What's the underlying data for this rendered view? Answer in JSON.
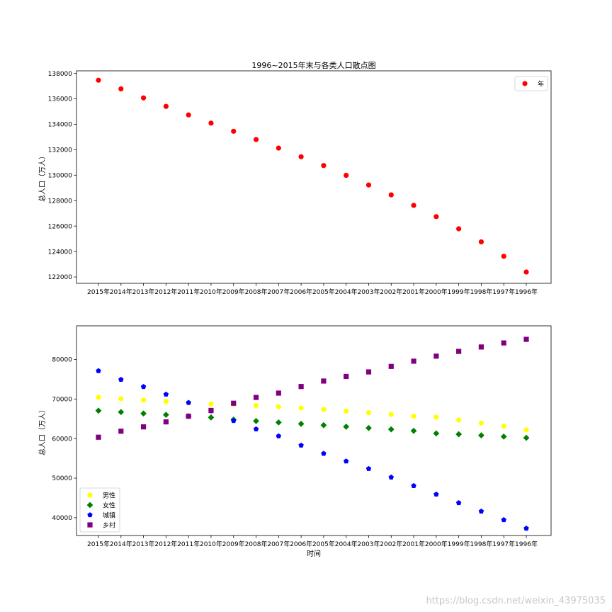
{
  "chart_data": [
    {
      "type": "scatter",
      "title": "1996~2015年末与各类人口散点图",
      "ylabel": "总人口（万人）",
      "xlabel": "",
      "ylim": [
        121500,
        138200
      ],
      "yticks": [
        122000,
        124000,
        126000,
        128000,
        130000,
        132000,
        134000,
        136000,
        138000
      ],
      "grid": false,
      "legend": "top-right",
      "categories": [
        "2015年",
        "2014年",
        "2013年",
        "2012年",
        "2011年",
        "2010年",
        "2009年",
        "2008年",
        "2007年",
        "2006年",
        "2005年",
        "2004年",
        "2003年",
        "2002年",
        "2001年",
        "2000年",
        "1999年",
        "1998年",
        "1997年",
        "1996年"
      ],
      "series": [
        {
          "name": "年",
          "color": "#ff0000",
          "marker": "circle",
          "values": [
            137462,
            136782,
            136072,
            135404,
            134735,
            134091,
            133450,
            132802,
            132129,
            131448,
            130756,
            129988,
            129227,
            128453,
            127627,
            126743,
            125786,
            124761,
            123626,
            122389
          ]
        }
      ]
    },
    {
      "type": "scatter",
      "title": "",
      "ylabel": "总人口（万人）",
      "xlabel": "时间",
      "ylim": [
        35500,
        88500
      ],
      "yticks": [
        40000,
        50000,
        60000,
        70000,
        80000
      ],
      "grid": false,
      "legend": "bottom-left",
      "categories": [
        "2015年",
        "2014年",
        "2013年",
        "2012年",
        "2011年",
        "2010年",
        "2009年",
        "2008年",
        "2007年",
        "2006年",
        "2005年",
        "2004年",
        "2003年",
        "2002年",
        "2001年",
        "2000年",
        "1999年",
        "1998年",
        "1997年",
        "1996年"
      ],
      "series": [
        {
          "name": "男性",
          "color": "#ffff00",
          "marker": "circle",
          "values": [
            70414,
            70079,
            69728,
            69395,
            69068,
            68748,
            68647,
            68357,
            68048,
            67728,
            67375,
            66976,
            66556,
            66115,
            65672,
            65437,
            64692,
            63940,
            63131,
            62200
          ]
        },
        {
          "name": "女性",
          "color": "#008000",
          "marker": "diamond",
          "values": [
            67048,
            66703,
            66344,
            66009,
            65667,
            65343,
            64803,
            64445,
            64081,
            63720,
            63381,
            63012,
            62671,
            62338,
            61955,
            61306,
            61094,
            60821,
            60495,
            60189
          ]
        },
        {
          "name": "城镇",
          "color": "#0000ff",
          "marker": "pentagon",
          "values": [
            77116,
            74916,
            73111,
            71182,
            69079,
            66978,
            64512,
            62403,
            60633,
            58288,
            56212,
            54283,
            52376,
            50212,
            48064,
            45906,
            43748,
            41608,
            39449,
            37304
          ]
        },
        {
          "name": "乡村",
          "color": "#800080",
          "marker": "square",
          "values": [
            60346,
            61866,
            62961,
            64222,
            65656,
            67113,
            68938,
            70399,
            71496,
            73160,
            74544,
            75705,
            76851,
            78241,
            79563,
            80837,
            82038,
            83153,
            84177,
            85085
          ]
        }
      ]
    }
  ],
  "watermark": "https://blog.csdn.net/weixin_43975035"
}
